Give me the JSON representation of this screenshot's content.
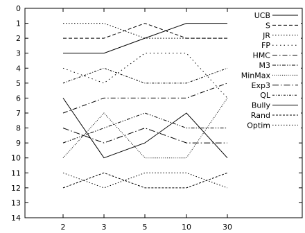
{
  "chart_data": {
    "type": "line",
    "title": "",
    "xlabel": "",
    "ylabel": "",
    "x": [
      "2",
      "3",
      "5",
      "10",
      "30"
    ],
    "ylim": [
      0,
      14
    ],
    "y_inverted": true,
    "y_ticks": [
      "0",
      "1",
      "2",
      "3",
      "4",
      "5",
      "6",
      "7",
      "8",
      "9",
      "10",
      "11",
      "12",
      "13",
      "14"
    ],
    "grid": false,
    "legend_position": "top-right",
    "series": [
      {
        "name": "UCB",
        "dash": "solid",
        "values": [
          3,
          3,
          2,
          1,
          1
        ]
      },
      {
        "name": "S",
        "dash": "dash",
        "values": [
          2,
          2,
          1,
          2,
          2
        ]
      },
      {
        "name": "JR",
        "dash": "dot",
        "values": [
          1,
          1,
          2,
          2,
          2
        ]
      },
      {
        "name": "FP",
        "dash": "dot-sparse",
        "values": [
          4,
          5,
          3,
          3,
          6
        ]
      },
      {
        "name": "HMC",
        "dash": "dash-dot",
        "values": [
          7,
          6,
          6,
          6,
          5
        ]
      },
      {
        "name": "M3",
        "dash": "dash-dot-dot",
        "values": [
          9,
          8,
          7,
          8,
          8
        ]
      },
      {
        "name": "MinMax",
        "dash": "dot-dense",
        "values": [
          10,
          7,
          10,
          10,
          6
        ]
      },
      {
        "name": "Exp3",
        "dash": "dash-dot-long",
        "values": [
          8,
          9,
          8,
          9,
          9
        ]
      },
      {
        "name": "QL",
        "dash": "dash-dot-small",
        "values": [
          5,
          4,
          5,
          5,
          4
        ]
      },
      {
        "name": "Bully",
        "dash": "solid",
        "values": [
          6,
          10,
          9,
          7,
          10
        ]
      },
      {
        "name": "Rand",
        "dash": "dash-small",
        "values": [
          12,
          11,
          12,
          12,
          11
        ]
      },
      {
        "name": "Optim",
        "dash": "dot",
        "values": [
          11,
          12,
          11,
          11,
          12
        ]
      }
    ]
  }
}
